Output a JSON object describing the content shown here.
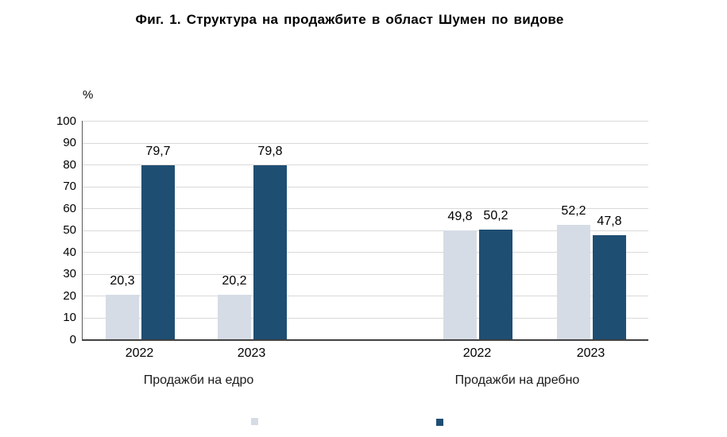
{
  "chart_data": {
    "type": "bar",
    "title": "Фиг. 1. Структура на продажбите в област Шумен по видове",
    "ylabel": "%",
    "ylim": [
      0,
      100
    ],
    "ytick_step": 10,
    "grid": true,
    "legend_position": "bottom",
    "decimal_separator": ",",
    "groups": [
      {
        "label": "Продажби на едро",
        "categories": [
          "2022",
          "2023"
        ]
      },
      {
        "label": "Продажби на дребно",
        "categories": [
          "2022",
          "2023"
        ]
      }
    ],
    "categories": [
      "2022",
      "2023",
      "2022",
      "2023"
    ],
    "series": [
      {
        "key": "light",
        "color": "#D6DCE5",
        "values": [
          20.3,
          20.2,
          49.8,
          52.2
        ],
        "value_labels": [
          "20,3",
          "20,2",
          "49,8",
          "52,2"
        ]
      },
      {
        "key": "dark",
        "color": "#1F4E73",
        "values": [
          79.7,
          79.8,
          50.2,
          47.8
        ],
        "value_labels": [
          "79,7",
          "79,8",
          "50,2",
          "47,8"
        ]
      }
    ],
    "colors": {
      "grid": "#D9D9D9",
      "axis": "#404040",
      "text": "#000000"
    }
  }
}
